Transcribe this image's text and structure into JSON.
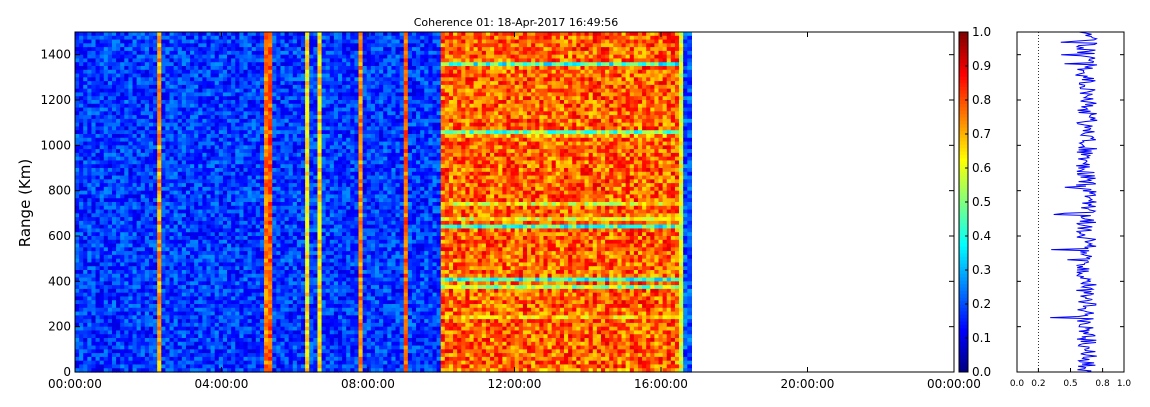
{
  "chart_data": [
    {
      "type": "heatmap",
      "title": "Coherence 01: 18-Apr-2017 16:49:56",
      "xlabel": "",
      "ylabel": "Range (Km)",
      "x_ticks": [
        "00:00:00",
        "04:00:00",
        "08:00:00",
        "12:00:00",
        "16:00:00",
        "20:00:00",
        "00:00:00"
      ],
      "x_range_hours": [
        0,
        24
      ],
      "data_end_hour": 16.83,
      "y_ticks": [
        0,
        200,
        400,
        600,
        800,
        1000,
        1200,
        1400
      ],
      "ylim": [
        0,
        1500
      ],
      "colormap": "jet",
      "color_range": [
        0.0,
        1.0
      ],
      "colorbar_ticks": [
        "0.0",
        "0.1",
        "0.2",
        "0.3",
        "0.4",
        "0.5",
        "0.6",
        "0.7",
        "0.8",
        "0.9",
        "1.0"
      ],
      "segments": [
        {
          "from_hour": 0,
          "to_hour": 10,
          "mean_coherence": 0.18
        },
        {
          "from_hour": 10,
          "to_hour": 16.5,
          "mean_coherence": 0.78
        },
        {
          "from_hour": 16.5,
          "to_hour": 16.83,
          "mean_coherence": 0.2
        }
      ],
      "grid": false
    },
    {
      "type": "line",
      "title": "",
      "xlabel": "",
      "ylabel": "",
      "x_ticks": [
        "0.0",
        "0.2",
        "0.5",
        "0.8",
        "1.0"
      ],
      "xlim": [
        0,
        1
      ],
      "ylim": [
        0,
        1500
      ],
      "reference_line_x": 0.2,
      "series": [
        {
          "color": "#0000ff",
          "mean_x": 0.65,
          "spread": 0.1
        }
      ]
    }
  ]
}
